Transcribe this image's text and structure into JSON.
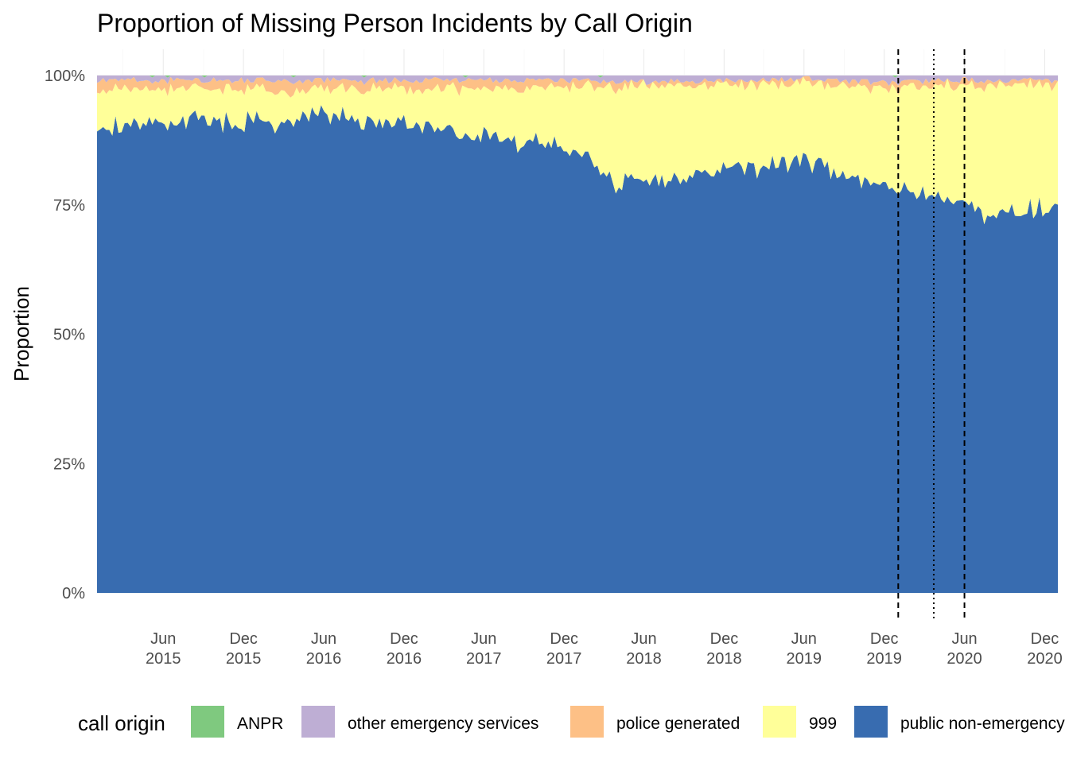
{
  "chart_data": {
    "type": "area",
    "stacked": "proportion",
    "title": "Proportion of Missing Person Incidents by Call Origin",
    "xlabel": "",
    "ylabel": "Proportion",
    "xlim": [
      "2015-01-01",
      "2020-12-31"
    ],
    "ylim": [
      0,
      1
    ],
    "y_ticks": [
      0,
      0.25,
      0.5,
      0.75,
      1.0
    ],
    "y_tick_labels": [
      "0%",
      "25%",
      "50%",
      "75%",
      "100%"
    ],
    "x_ticks": [
      {
        "date": "2015-06-01",
        "line1": "Jun",
        "line2": "2015"
      },
      {
        "date": "2015-12-01",
        "line1": "Dec",
        "line2": "2015"
      },
      {
        "date": "2016-06-01",
        "line1": "Jun",
        "line2": "2016"
      },
      {
        "date": "2016-12-01",
        "line1": "Dec",
        "line2": "2016"
      },
      {
        "date": "2017-06-01",
        "line1": "Jun",
        "line2": "2017"
      },
      {
        "date": "2017-12-01",
        "line1": "Dec",
        "line2": "2017"
      },
      {
        "date": "2018-06-01",
        "line1": "Jun",
        "line2": "2018"
      },
      {
        "date": "2018-12-01",
        "line1": "Dec",
        "line2": "2018"
      },
      {
        "date": "2019-06-01",
        "line1": "Jun",
        "line2": "2019"
      },
      {
        "date": "2019-12-01",
        "line1": "Dec",
        "line2": "2019"
      },
      {
        "date": "2020-06-01",
        "line1": "Jun",
        "line2": "2020"
      },
      {
        "date": "2020-12-01",
        "line1": "Dec",
        "line2": "2020"
      }
    ],
    "x_minor_ticks": [
      "2015-03-01",
      "2015-09-01",
      "2016-03-01",
      "2016-09-01",
      "2017-03-01",
      "2017-09-01",
      "2018-03-01",
      "2018-09-01",
      "2019-03-01",
      "2019-09-01",
      "2020-03-01",
      "2020-09-01"
    ],
    "vlines": [
      {
        "date": "2020-01-02",
        "style": "dashed"
      },
      {
        "date": "2020-03-23",
        "style": "dotted"
      },
      {
        "date": "2020-06-01",
        "style": "dashed"
      }
    ],
    "legend_title": "call origin",
    "legend_position": "bottom",
    "series": [
      {
        "name": "public non-emergency",
        "color": "#386cb0"
      },
      {
        "name": "999",
        "color": "#ffff99"
      },
      {
        "name": "police generated",
        "color": "#fdc086"
      },
      {
        "name": "other emergency services",
        "color": "#beaed4"
      },
      {
        "name": "ANPR",
        "color": "#7fc97f"
      }
    ],
    "legend_order": [
      "ANPR",
      "other emergency services",
      "police generated",
      "999",
      "public non-emergency"
    ],
    "anchors": {
      "public non-emergency": [
        [
          "2015-01-01",
          0.88
        ],
        [
          "2015-02-15",
          0.93
        ],
        [
          "2015-04-01",
          0.92
        ],
        [
          "2015-06-01",
          0.91
        ],
        [
          "2015-09-01",
          0.9
        ],
        [
          "2015-12-01",
          0.89
        ],
        [
          "2016-03-01",
          0.9
        ],
        [
          "2016-06-01",
          0.91
        ],
        [
          "2016-09-01",
          0.9
        ],
        [
          "2016-12-01",
          0.89
        ],
        [
          "2017-03-01",
          0.88
        ],
        [
          "2017-06-01",
          0.87
        ],
        [
          "2017-09-01",
          0.86
        ],
        [
          "2017-12-01",
          0.85
        ],
        [
          "2018-02-01",
          0.81
        ],
        [
          "2018-04-01",
          0.78
        ],
        [
          "2018-06-01",
          0.79
        ],
        [
          "2018-08-01",
          0.79
        ],
        [
          "2018-10-01",
          0.81
        ],
        [
          "2018-12-01",
          0.82
        ],
        [
          "2019-02-01",
          0.82
        ],
        [
          "2019-04-01",
          0.83
        ],
        [
          "2019-06-01",
          0.83
        ],
        [
          "2019-08-01",
          0.8
        ],
        [
          "2019-10-01",
          0.78
        ],
        [
          "2019-12-01",
          0.78
        ],
        [
          "2020-02-01",
          0.76
        ],
        [
          "2020-04-01",
          0.76
        ],
        [
          "2020-06-01",
          0.75
        ],
        [
          "2020-08-01",
          0.72
        ],
        [
          "2020-10-01",
          0.74
        ],
        [
          "2020-12-01",
          0.75
        ],
        [
          "2020-12-31",
          0.74
        ]
      ],
      "999": [
        [
          "2015-01-01",
          0.08
        ],
        [
          "2015-06-01",
          0.06
        ],
        [
          "2016-01-01",
          0.06
        ],
        [
          "2016-06-01",
          0.05
        ],
        [
          "2017-01-01",
          0.07
        ],
        [
          "2017-06-01",
          0.09
        ],
        [
          "2017-12-01",
          0.11
        ],
        [
          "2018-04-01",
          0.18
        ],
        [
          "2018-08-01",
          0.18
        ],
        [
          "2018-12-01",
          0.16
        ],
        [
          "2019-06-01",
          0.15
        ],
        [
          "2019-12-01",
          0.19
        ],
        [
          "2020-04-01",
          0.21
        ],
        [
          "2020-08-01",
          0.25
        ],
        [
          "2020-12-31",
          0.23
        ]
      ],
      "police generated": [
        [
          "2015-01-01",
          0.012
        ],
        [
          "2016-01-01",
          0.014
        ],
        [
          "2017-01-01",
          0.012
        ],
        [
          "2017-12-01",
          0.01
        ],
        [
          "2018-06-01",
          0.004
        ],
        [
          "2019-06-01",
          0.003
        ],
        [
          "2020-01-01",
          0.004
        ],
        [
          "2020-12-31",
          0.006
        ]
      ],
      "other emergency services": [
        [
          "2015-01-01",
          0.006
        ],
        [
          "2016-06-01",
          0.007
        ],
        [
          "2017-06-01",
          0.006
        ],
        [
          "2018-06-01",
          0.01
        ],
        [
          "2019-06-01",
          0.004
        ],
        [
          "2019-12-01",
          0.012
        ],
        [
          "2020-06-01",
          0.006
        ],
        [
          "2020-12-31",
          0.008
        ]
      ]
    }
  }
}
